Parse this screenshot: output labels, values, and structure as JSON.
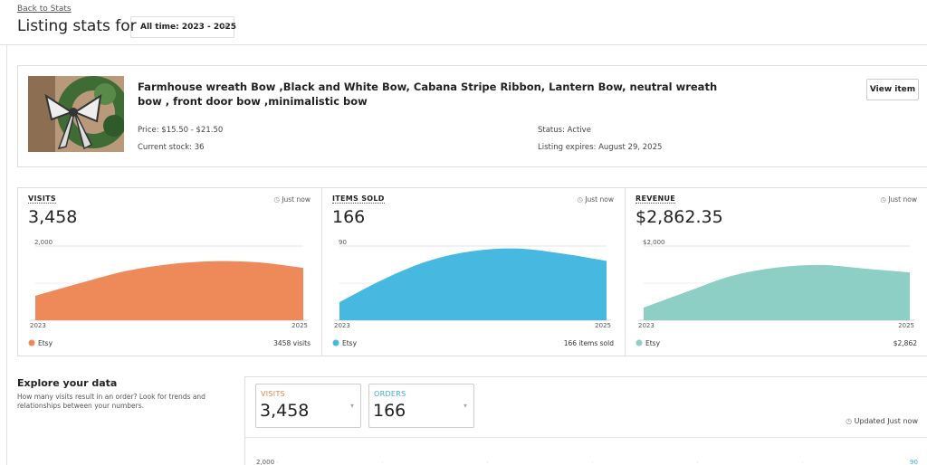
{
  "header": {
    "back_link": "Back to Stats",
    "title": "Listing stats for",
    "period": "All time: 2023 - 2025"
  },
  "listing": {
    "title": "Farmhouse wreath Bow ,Black and White Bow, Cabana Stripe Ribbon, Lantern Bow, neutral wreath bow , front door bow ,minimalistic bow",
    "price": "Price: $15.50 - $21.50",
    "stock": "Current stock: 36",
    "status": "Status: Active",
    "expires": "Listing expires: August 29, 2025",
    "button": "View item"
  },
  "stats": [
    {
      "label": "VISITS",
      "updated": "Just now",
      "total": "3,458",
      "chart": {
        "type": "area",
        "color": "#ee8a5a",
        "ylim": [
          0,
          2000
        ],
        "yticks": [
          {
            "value": 2000,
            "label": "2,000"
          }
        ],
        "xlabels": [
          "2023",
          "2025"
        ],
        "values": [
          660,
          1000,
          1320,
          1510,
          1590,
          1560,
          1410
        ]
      },
      "legend": "Etsy",
      "legend_value": "3458 visits"
    },
    {
      "label": "ITEMS SOLD",
      "updated": "Just now",
      "total": "166",
      "chart": {
        "type": "area",
        "color": "#47b9e0",
        "ylim": [
          0,
          90
        ],
        "yticks": [
          90
        ],
        "xlabels": [
          "2023",
          "2025"
        ],
        "values": [
          22,
          50,
          72,
          84,
          87,
          81,
          72
        ]
      },
      "legend": "Etsy",
      "legend_value": "166 items sold"
    },
    {
      "label": "REVENUE",
      "updated": "Just now",
      "total": "$2,862.35",
      "chart": {
        "type": "area",
        "color": "#8dcfc4",
        "ylim": [
          0,
          2000
        ],
        "yticks": [
          {
            "value": 2000,
            "label": "$2,000"
          }
        ],
        "xlabels": [
          "2023",
          "2025"
        ],
        "values": [
          340,
          780,
          1200,
          1420,
          1490,
          1390,
          1290
        ]
      },
      "legend": "Etsy",
      "legend_value": "$2,862"
    }
  ],
  "explore": {
    "title": "Explore your data",
    "description": "How many visits result in an order? Look for trends and relationships between your numbers.",
    "cards": [
      {
        "label": "VISITS",
        "value": "3,458",
        "color": "#e8804f"
      },
      {
        "label": "ORDERS",
        "value": "166",
        "color": "#3fa9d6"
      }
    ],
    "updated": "Updated Just now",
    "chart": {
      "yticks": [
        {
          "value": 2000,
          "label": "2,000"
        }
      ],
      "y2ticks": [
        90
      ]
    }
  }
}
